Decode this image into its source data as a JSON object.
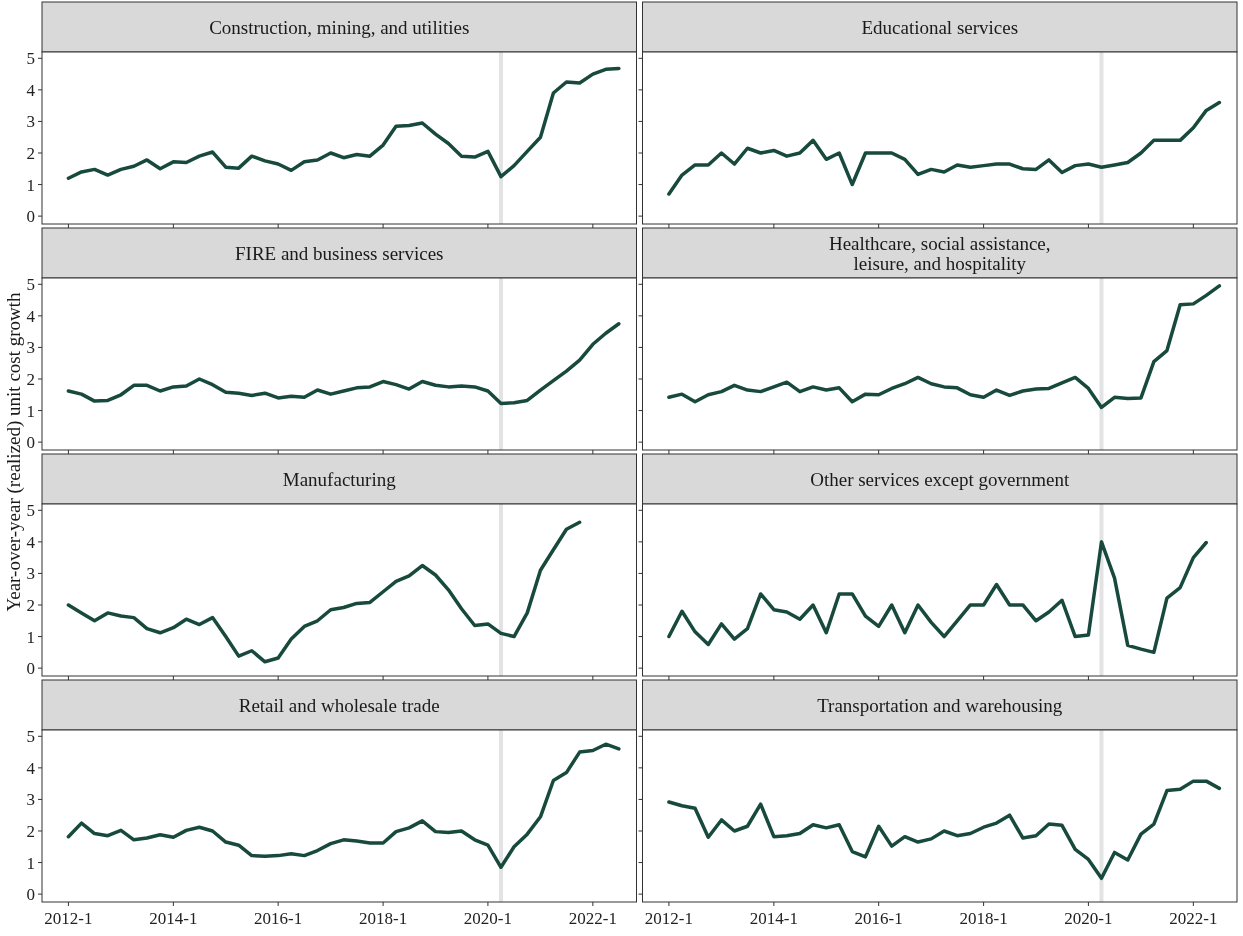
{
  "chart_data": [
    {
      "type": "line",
      "title": "Construction, mining, and utilities",
      "ylabel": "Year-over-year (realized) unit cost growth",
      "color": "#174a3c",
      "tick_labels": "y",
      "xlim": [
        "2011-07",
        "2022-11"
      ],
      "ylim": [
        -0.25,
        5.2
      ],
      "yticks": [
        0,
        1,
        2,
        3,
        4,
        5
      ],
      "xticks": [
        {
          "value": "2012-01",
          "label": null
        },
        {
          "value": "2014-01",
          "label": null
        },
        {
          "value": "2016-01",
          "label": null
        },
        {
          "value": "2018-01",
          "label": null
        },
        {
          "value": "2020-01",
          "label": null
        },
        {
          "value": "2022-01",
          "label": null
        }
      ],
      "ref_lines": [
        {
          "axis": "x",
          "value": "2020-04",
          "color": "#e3e3e3"
        }
      ],
      "x": [
        "2012-01",
        "2012-04",
        "2012-07",
        "2012-10",
        "2013-01",
        "2013-04",
        "2013-07",
        "2013-10",
        "2014-01",
        "2014-04",
        "2014-07",
        "2014-10",
        "2015-01",
        "2015-04",
        "2015-07",
        "2015-10",
        "2016-01",
        "2016-04",
        "2016-07",
        "2016-10",
        "2017-01",
        "2017-04",
        "2017-07",
        "2017-10",
        "2018-01",
        "2018-04",
        "2018-07",
        "2018-10",
        "2019-01",
        "2019-04",
        "2019-07",
        "2019-10",
        "2020-01",
        "2020-04",
        "2020-07",
        "2020-10",
        "2021-01",
        "2021-04",
        "2021-07",
        "2021-10",
        "2022-01",
        "2022-04",
        "2022-07"
      ],
      "values": [
        1.2,
        1.4,
        1.48,
        1.3,
        1.48,
        1.58,
        1.78,
        1.5,
        1.72,
        1.7,
        1.9,
        2.03,
        1.55,
        1.52,
        1.9,
        1.75,
        1.65,
        1.45,
        1.72,
        1.78,
        2.0,
        1.85,
        1.95,
        1.9,
        2.25,
        2.85,
        2.87,
        2.95,
        2.6,
        2.3,
        1.9,
        1.87,
        2.05,
        1.25,
        1.6,
        2.05,
        2.5,
        3.9,
        4.25,
        4.22,
        4.5,
        4.65,
        4.68
      ]
    },
    {
      "type": "line",
      "title": "Educational services",
      "color": "#174a3c",
      "tick_labels": false,
      "xlim": [
        "2011-07",
        "2022-11"
      ],
      "ylim": [
        -0.25,
        5.2
      ],
      "yticks": [
        {
          "value": 0,
          "label": null
        },
        {
          "value": 1,
          "label": null
        },
        {
          "value": 2,
          "label": null
        },
        {
          "value": 3,
          "label": null
        },
        {
          "value": 4,
          "label": null
        },
        {
          "value": 5,
          "label": null
        }
      ],
      "xticks": [
        {
          "value": "2012-01",
          "label": null
        },
        {
          "value": "2014-01",
          "label": null
        },
        {
          "value": "2016-01",
          "label": null
        },
        {
          "value": "2018-01",
          "label": null
        },
        {
          "value": "2020-01",
          "label": null
        },
        {
          "value": "2022-01",
          "label": null
        }
      ],
      "ref_lines": [
        {
          "axis": "x",
          "value": "2020-04",
          "color": "#e3e3e3"
        }
      ],
      "x": [
        "2012-01",
        "2012-04",
        "2012-07",
        "2012-10",
        "2013-01",
        "2013-04",
        "2013-07",
        "2013-10",
        "2014-01",
        "2014-04",
        "2014-07",
        "2014-10",
        "2015-01",
        "2015-04",
        "2015-07",
        "2015-10",
        "2016-01",
        "2016-04",
        "2016-07",
        "2016-10",
        "2017-01",
        "2017-04",
        "2017-07",
        "2017-10",
        "2018-01",
        "2018-04",
        "2018-07",
        "2018-10",
        "2019-01",
        "2019-04",
        "2019-07",
        "2019-10",
        "2020-01",
        "2020-04",
        "2020-07",
        "2020-10",
        "2021-01",
        "2021-04",
        "2021-07",
        "2021-10",
        "2022-01",
        "2022-04",
        "2022-07"
      ],
      "values": [
        0.7,
        1.3,
        1.62,
        1.62,
        2.0,
        1.65,
        2.15,
        2.0,
        2.08,
        1.9,
        2.0,
        2.4,
        1.8,
        2.0,
        1.0,
        2.0,
        2.0,
        2.0,
        1.8,
        1.32,
        1.48,
        1.4,
        1.62,
        1.55,
        1.6,
        1.65,
        1.65,
        1.5,
        1.48,
        1.78,
        1.38,
        1.6,
        1.65,
        1.55,
        1.62,
        1.7,
        2.0,
        2.4,
        2.4,
        2.4,
        2.8,
        3.35,
        3.6
      ]
    },
    {
      "type": "line",
      "title": "FIRE and business services",
      "color": "#174a3c",
      "tick_labels": "y",
      "xlim": [
        "2011-07",
        "2022-11"
      ],
      "ylim": [
        -0.25,
        5.2
      ],
      "yticks": [
        0,
        1,
        2,
        3,
        4,
        5
      ],
      "xticks": [
        {
          "value": "2012-01",
          "label": null
        },
        {
          "value": "2014-01",
          "label": null
        },
        {
          "value": "2016-01",
          "label": null
        },
        {
          "value": "2018-01",
          "label": null
        },
        {
          "value": "2020-01",
          "label": null
        },
        {
          "value": "2022-01",
          "label": null
        }
      ],
      "ref_lines": [
        {
          "axis": "x",
          "value": "2020-04",
          "color": "#e3e3e3"
        }
      ],
      "x": [
        "2012-01",
        "2012-04",
        "2012-07",
        "2012-10",
        "2013-01",
        "2013-04",
        "2013-07",
        "2013-10",
        "2014-01",
        "2014-04",
        "2014-07",
        "2014-10",
        "2015-01",
        "2015-04",
        "2015-07",
        "2015-10",
        "2016-01",
        "2016-04",
        "2016-07",
        "2016-10",
        "2017-01",
        "2017-04",
        "2017-07",
        "2017-10",
        "2018-01",
        "2018-04",
        "2018-07",
        "2018-10",
        "2019-01",
        "2019-04",
        "2019-07",
        "2019-10",
        "2020-01",
        "2020-04",
        "2020-07",
        "2020-10",
        "2021-01",
        "2021-04",
        "2021-07",
        "2021-10",
        "2022-01",
        "2022-04",
        "2022-07"
      ],
      "values": [
        1.62,
        1.52,
        1.3,
        1.32,
        1.5,
        1.8,
        1.8,
        1.62,
        1.75,
        1.78,
        2.0,
        1.82,
        1.58,
        1.55,
        1.48,
        1.55,
        1.4,
        1.45,
        1.42,
        1.65,
        1.52,
        1.62,
        1.72,
        1.75,
        1.92,
        1.82,
        1.68,
        1.92,
        1.8,
        1.75,
        1.78,
        1.75,
        1.62,
        1.22,
        1.25,
        1.32,
        1.65,
        1.95,
        2.25,
        2.6,
        3.1,
        3.45,
        3.75
      ]
    },
    {
      "type": "line",
      "title": "Healthcare, social assistance,\nleisure, and hospitality",
      "color": "#174a3c",
      "tick_labels": false,
      "xlim": [
        "2011-07",
        "2022-11"
      ],
      "ylim": [
        -0.25,
        5.2
      ],
      "yticks": [
        {
          "value": 0,
          "label": null
        },
        {
          "value": 1,
          "label": null
        },
        {
          "value": 2,
          "label": null
        },
        {
          "value": 3,
          "label": null
        },
        {
          "value": 4,
          "label": null
        },
        {
          "value": 5,
          "label": null
        }
      ],
      "xticks": [
        {
          "value": "2012-01",
          "label": null
        },
        {
          "value": "2014-01",
          "label": null
        },
        {
          "value": "2016-01",
          "label": null
        },
        {
          "value": "2018-01",
          "label": null
        },
        {
          "value": "2020-01",
          "label": null
        },
        {
          "value": "2022-01",
          "label": null
        }
      ],
      "ref_lines": [
        {
          "axis": "x",
          "value": "2020-04",
          "color": "#e3e3e3"
        }
      ],
      "x": [
        "2012-01",
        "2012-04",
        "2012-07",
        "2012-10",
        "2013-01",
        "2013-04",
        "2013-07",
        "2013-10",
        "2014-01",
        "2014-04",
        "2014-07",
        "2014-10",
        "2015-01",
        "2015-04",
        "2015-07",
        "2015-10",
        "2016-01",
        "2016-04",
        "2016-07",
        "2016-10",
        "2017-01",
        "2017-04",
        "2017-07",
        "2017-10",
        "2018-01",
        "2018-04",
        "2018-07",
        "2018-10",
        "2019-01",
        "2019-04",
        "2019-07",
        "2019-10",
        "2020-01",
        "2020-04",
        "2020-07",
        "2020-10",
        "2021-01",
        "2021-04",
        "2021-07",
        "2021-10",
        "2022-01",
        "2022-04",
        "2022-07"
      ],
      "values": [
        1.42,
        1.52,
        1.28,
        1.5,
        1.6,
        1.8,
        1.65,
        1.6,
        1.75,
        1.9,
        1.6,
        1.75,
        1.65,
        1.72,
        1.28,
        1.52,
        1.5,
        1.7,
        1.85,
        2.05,
        1.85,
        1.75,
        1.72,
        1.5,
        1.42,
        1.65,
        1.48,
        1.62,
        1.68,
        1.7,
        1.88,
        2.05,
        1.7,
        1.1,
        1.42,
        1.38,
        1.4,
        2.55,
        2.9,
        4.35,
        4.38,
        4.65,
        4.95
      ]
    },
    {
      "type": "line",
      "title": "Manufacturing",
      "color": "#174a3c",
      "tick_labels": "y",
      "xlim": [
        "2011-07",
        "2022-11"
      ],
      "ylim": [
        -0.25,
        5.2
      ],
      "yticks": [
        0,
        1,
        2,
        3,
        4,
        5
      ],
      "xticks": [
        {
          "value": "2012-01",
          "label": null
        },
        {
          "value": "2014-01",
          "label": null
        },
        {
          "value": "2016-01",
          "label": null
        },
        {
          "value": "2018-01",
          "label": null
        },
        {
          "value": "2020-01",
          "label": null
        },
        {
          "value": "2022-01",
          "label": null
        }
      ],
      "ref_lines": [
        {
          "axis": "x",
          "value": "2020-04",
          "color": "#e3e3e3"
        }
      ],
      "x": [
        "2012-01",
        "2012-04",
        "2012-07",
        "2012-10",
        "2013-01",
        "2013-04",
        "2013-07",
        "2013-10",
        "2014-01",
        "2014-04",
        "2014-07",
        "2014-10",
        "2015-01",
        "2015-04",
        "2015-07",
        "2015-10",
        "2016-01",
        "2016-04",
        "2016-07",
        "2016-10",
        "2017-01",
        "2017-04",
        "2017-07",
        "2017-10",
        "2018-01",
        "2018-04",
        "2018-07",
        "2018-10",
        "2019-01",
        "2019-04",
        "2019-07",
        "2019-10",
        "2020-01",
        "2020-04",
        "2020-07",
        "2020-10",
        "2021-01",
        "2021-04",
        "2021-07",
        "2021-10"
      ],
      "values": [
        2.0,
        1.75,
        1.5,
        1.75,
        1.65,
        1.6,
        1.25,
        1.12,
        1.28,
        1.55,
        1.38,
        1.6,
        1.0,
        0.38,
        0.55,
        0.2,
        0.32,
        0.92,
        1.32,
        1.5,
        1.85,
        1.92,
        2.05,
        2.08,
        2.42,
        2.75,
        2.92,
        3.25,
        2.95,
        2.48,
        1.88,
        1.35,
        1.4,
        1.1,
        1.0,
        1.75,
        3.1,
        3.75,
        4.4,
        4.62
      ]
    },
    {
      "type": "line",
      "title": "Other services except government",
      "color": "#174a3c",
      "tick_labels": false,
      "xlim": [
        "2011-07",
        "2022-11"
      ],
      "ylim": [
        -0.25,
        5.2
      ],
      "yticks": [
        {
          "value": 0,
          "label": null
        },
        {
          "value": 1,
          "label": null
        },
        {
          "value": 2,
          "label": null
        },
        {
          "value": 3,
          "label": null
        },
        {
          "value": 4,
          "label": null
        },
        {
          "value": 5,
          "label": null
        }
      ],
      "xticks": [
        {
          "value": "2012-01",
          "label": null
        },
        {
          "value": "2014-01",
          "label": null
        },
        {
          "value": "2016-01",
          "label": null
        },
        {
          "value": "2018-01",
          "label": null
        },
        {
          "value": "2020-01",
          "label": null
        },
        {
          "value": "2022-01",
          "label": null
        }
      ],
      "ref_lines": [
        {
          "axis": "x",
          "value": "2020-04",
          "color": "#e3e3e3"
        }
      ],
      "x": [
        "2012-01",
        "2012-04",
        "2012-07",
        "2012-10",
        "2013-01",
        "2013-04",
        "2013-07",
        "2013-10",
        "2014-01",
        "2014-04",
        "2014-07",
        "2014-10",
        "2015-01",
        "2015-04",
        "2015-07",
        "2015-10",
        "2016-01",
        "2016-04",
        "2016-07",
        "2016-10",
        "2017-01",
        "2017-04",
        "2017-07",
        "2017-10",
        "2018-01",
        "2018-04",
        "2018-07",
        "2018-10",
        "2019-01",
        "2019-04",
        "2019-07",
        "2019-10",
        "2020-01",
        "2020-04",
        "2020-07",
        "2020-10",
        "2021-01",
        "2021-04",
        "2021-07",
        "2021-10",
        "2022-01",
        "2022-04"
      ],
      "values": [
        1.0,
        1.8,
        1.15,
        0.75,
        1.4,
        0.92,
        1.25,
        2.35,
        1.85,
        1.78,
        1.55,
        2.0,
        1.12,
        2.35,
        2.35,
        1.65,
        1.32,
        2.0,
        1.12,
        2.0,
        1.45,
        1.0,
        1.5,
        2.0,
        2.0,
        2.65,
        2.0,
        2.0,
        1.5,
        1.78,
        2.15,
        1.0,
        1.05,
        4.0,
        2.85,
        0.72,
        0.6,
        0.5,
        2.22,
        2.55,
        3.5,
        3.98
      ]
    },
    {
      "type": "line",
      "title": "Retail and wholesale trade",
      "color": "#174a3c",
      "xlim": [
        "2011-07",
        "2022-11"
      ],
      "ylim": [
        -0.25,
        5.2
      ],
      "yticks": [
        0,
        1,
        2,
        3,
        4,
        5
      ],
      "xticks": [
        {
          "value": "2012-01",
          "label": "2012-1"
        },
        {
          "value": "2014-01",
          "label": "2014-1"
        },
        {
          "value": "2016-01",
          "label": "2016-1"
        },
        {
          "value": "2018-01",
          "label": "2018-1"
        },
        {
          "value": "2020-01",
          "label": "2020-1"
        },
        {
          "value": "2022-01",
          "label": "2022-1"
        }
      ],
      "ref_lines": [
        {
          "axis": "x",
          "value": "2020-04",
          "color": "#e3e3e3"
        }
      ],
      "x": [
        "2012-01",
        "2012-04",
        "2012-07",
        "2012-10",
        "2013-01",
        "2013-04",
        "2013-07",
        "2013-10",
        "2014-01",
        "2014-04",
        "2014-07",
        "2014-10",
        "2015-01",
        "2015-04",
        "2015-07",
        "2015-10",
        "2016-01",
        "2016-04",
        "2016-07",
        "2016-10",
        "2017-01",
        "2017-04",
        "2017-07",
        "2017-10",
        "2018-01",
        "2018-04",
        "2018-07",
        "2018-10",
        "2019-01",
        "2019-04",
        "2019-07",
        "2019-10",
        "2020-01",
        "2020-04",
        "2020-07",
        "2020-10",
        "2021-01",
        "2021-04",
        "2021-07",
        "2021-10",
        "2022-01",
        "2022-04",
        "2022-07"
      ],
      "values": [
        1.82,
        2.25,
        1.92,
        1.85,
        2.02,
        1.72,
        1.78,
        1.88,
        1.8,
        2.02,
        2.12,
        2.0,
        1.65,
        1.55,
        1.22,
        1.2,
        1.22,
        1.28,
        1.22,
        1.38,
        1.6,
        1.72,
        1.68,
        1.62,
        1.62,
        1.98,
        2.1,
        2.32,
        1.98,
        1.95,
        2.0,
        1.72,
        1.55,
        0.85,
        1.5,
        1.9,
        2.45,
        3.6,
        3.85,
        4.5,
        4.55,
        4.75,
        4.6
      ]
    },
    {
      "type": "line",
      "title": "Transportation and warehousing",
      "color": "#174a3c",
      "tick_labels": "x",
      "xlim": [
        "2011-07",
        "2022-11"
      ],
      "ylim": [
        -0.25,
        5.2
      ],
      "yticks": [
        {
          "value": 0,
          "label": null
        },
        {
          "value": 1,
          "label": null
        },
        {
          "value": 2,
          "label": null
        },
        {
          "value": 3,
          "label": null
        },
        {
          "value": 4,
          "label": null
        },
        {
          "value": 5,
          "label": null
        }
      ],
      "xticks": [
        {
          "value": "2012-01",
          "label": "2012-1"
        },
        {
          "value": "2014-01",
          "label": "2014-1"
        },
        {
          "value": "2016-01",
          "label": "2016-1"
        },
        {
          "value": "2018-01",
          "label": "2018-1"
        },
        {
          "value": "2020-01",
          "label": "2020-1"
        },
        {
          "value": "2022-01",
          "label": "2022-1"
        }
      ],
      "ref_lines": [
        {
          "axis": "x",
          "value": "2020-04",
          "color": "#e3e3e3"
        }
      ],
      "x": [
        "2012-01",
        "2012-04",
        "2012-07",
        "2012-10",
        "2013-01",
        "2013-04",
        "2013-07",
        "2013-10",
        "2014-01",
        "2014-04",
        "2014-07",
        "2014-10",
        "2015-01",
        "2015-04",
        "2015-07",
        "2015-10",
        "2016-01",
        "2016-04",
        "2016-07",
        "2016-10",
        "2017-01",
        "2017-04",
        "2017-07",
        "2017-10",
        "2018-01",
        "2018-04",
        "2018-07",
        "2018-10",
        "2019-01",
        "2019-04",
        "2019-07",
        "2019-10",
        "2020-01",
        "2020-04",
        "2020-07",
        "2020-10",
        "2021-01",
        "2021-04",
        "2021-07",
        "2021-10",
        "2022-01",
        "2022-04",
        "2022-07"
      ],
      "values": [
        2.92,
        2.8,
        2.72,
        1.8,
        2.35,
        2.0,
        2.15,
        2.85,
        1.82,
        1.85,
        1.92,
        2.2,
        2.1,
        2.2,
        1.35,
        1.18,
        2.15,
        1.52,
        1.82,
        1.65,
        1.75,
        2.0,
        1.85,
        1.92,
        2.12,
        2.25,
        2.5,
        1.78,
        1.85,
        2.22,
        2.18,
        1.42,
        1.1,
        0.5,
        1.32,
        1.08,
        1.9,
        2.22,
        3.28,
        3.32,
        3.58,
        3.58,
        3.35
      ]
    }
  ]
}
